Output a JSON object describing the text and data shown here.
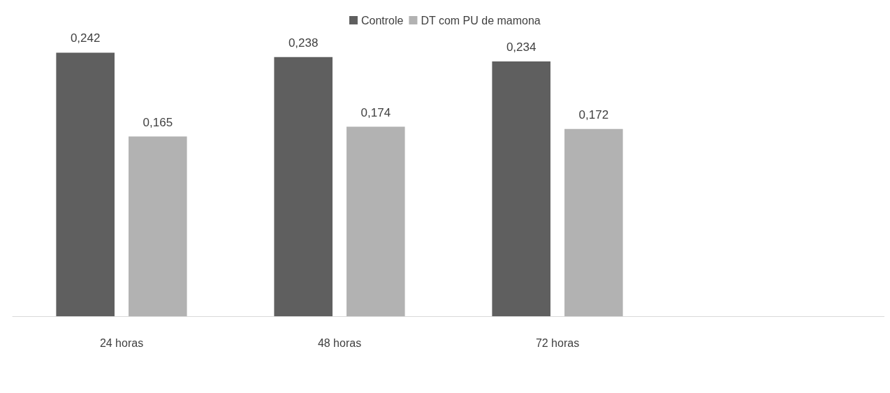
{
  "chart_data": {
    "type": "bar",
    "categories": [
      "24 horas",
      "48 horas",
      "72 horas",
      null
    ],
    "series": [
      {
        "name": "Controle",
        "color": "#5f5f5f",
        "values": [
          0.242,
          0.238,
          0.234,
          null
        ],
        "value_labels": [
          "0,242",
          "0,238",
          "0,234",
          null
        ]
      },
      {
        "name": "DT com PU de mamona",
        "color": "#b2b2b2",
        "values": [
          0.165,
          0.174,
          0.172,
          null
        ],
        "value_labels": [
          "0,165",
          "0,174",
          "0,172",
          null
        ]
      }
    ],
    "legend": "top",
    "grid": false
  }
}
